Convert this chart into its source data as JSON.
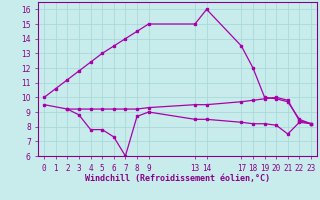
{
  "background_color": "#c8ecec",
  "grid_color": "#aad8d8",
  "line_color": "#aa00aa",
  "xlabel": "Windchill (Refroidissement éolien,°C)",
  "ylim": [
    6,
    16.5
  ],
  "yticks": [
    6,
    7,
    8,
    9,
    10,
    11,
    12,
    13,
    14,
    15,
    16
  ],
  "xlim": [
    -0.5,
    23.5
  ],
  "x_tick_positions": [
    0,
    1,
    2,
    3,
    4,
    5,
    6,
    7,
    8,
    9,
    13,
    14,
    17,
    18,
    19,
    20,
    21,
    22,
    23
  ],
  "x_tick_labels": [
    "0",
    "1",
    "2",
    "3",
    "4",
    "5",
    "6",
    "7",
    "8",
    "9",
    "13",
    "14",
    "17",
    "18",
    "19",
    "20",
    "21",
    "22",
    "23"
  ],
  "line1_x": [
    0,
    1,
    2,
    3,
    4,
    5,
    6,
    7,
    8,
    9,
    13,
    14,
    17,
    18,
    19,
    20,
    21,
    22,
    23
  ],
  "line1_y": [
    10.0,
    10.6,
    11.2,
    11.8,
    12.4,
    13.0,
    13.5,
    14.0,
    14.5,
    15.0,
    15.0,
    16.0,
    13.5,
    12.0,
    10.0,
    9.9,
    9.7,
    8.5,
    8.2
  ],
  "line2_x": [
    2,
    3,
    4,
    5,
    6,
    7,
    8,
    9,
    13,
    14,
    17,
    18,
    19,
    20,
    21,
    22,
    23
  ],
  "line2_y": [
    9.2,
    8.8,
    7.8,
    7.8,
    7.3,
    6.0,
    8.7,
    9.0,
    8.5,
    8.5,
    8.3,
    8.2,
    8.2,
    8.1,
    7.5,
    8.3,
    8.2
  ],
  "line3_x": [
    0,
    2,
    3,
    4,
    5,
    6,
    7,
    8,
    9,
    13,
    14,
    17,
    18,
    19,
    20,
    21,
    22,
    23
  ],
  "line3_y": [
    9.5,
    9.2,
    9.2,
    9.2,
    9.2,
    9.2,
    9.2,
    9.2,
    9.3,
    9.5,
    9.5,
    9.7,
    9.8,
    9.9,
    10.0,
    9.8,
    8.4,
    8.2
  ]
}
